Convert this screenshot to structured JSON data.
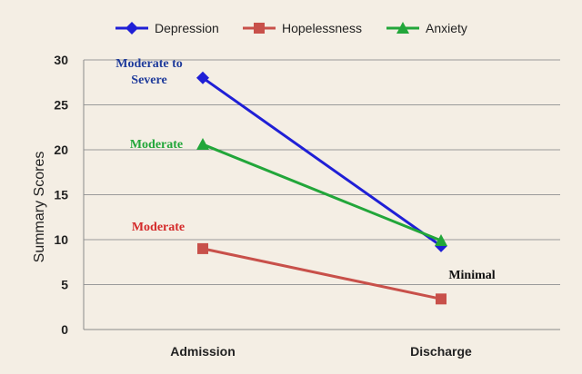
{
  "chart_data": {
    "type": "line",
    "categories": [
      "Admission",
      "Discharge"
    ],
    "series": [
      {
        "name": "Depression",
        "values": [
          28,
          9.3
        ],
        "color": "#1f1fd6",
        "marker": "diamond"
      },
      {
        "name": "Hopelessness",
        "values": [
          9,
          3.4
        ],
        "color": "#c8504a",
        "marker": "square"
      },
      {
        "name": "Anxiety",
        "values": [
          20.6,
          9.9
        ],
        "color": "#22a63a",
        "marker": "triangle"
      }
    ],
    "ylabel": "Summary Scores",
    "xlabel": "",
    "title": "",
    "ylim": [
      0,
      30
    ],
    "yticks": [
      0,
      5,
      10,
      15,
      20,
      25,
      30
    ],
    "grid": true,
    "legend": "top",
    "annotations": [
      {
        "lines": [
          "Moderate to",
          "Severe"
        ],
        "color": "#1f3b9b",
        "category": "Admission",
        "y": 28
      },
      {
        "lines": [
          "Moderate"
        ],
        "color": "#22a63a",
        "category": "Admission",
        "y": 20.6
      },
      {
        "lines": [
          "Moderate"
        ],
        "color": "#d42a2a",
        "category": "Admission",
        "y": 9
      },
      {
        "lines": [
          "Minimal"
        ],
        "color": "#111111",
        "category": "Discharge",
        "y": 9.3
      }
    ]
  }
}
